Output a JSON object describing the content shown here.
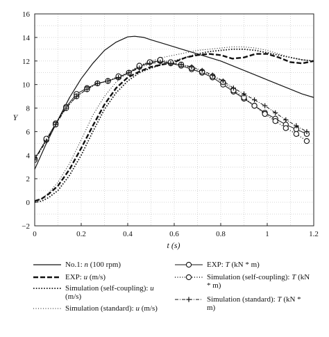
{
  "chart_data": {
    "type": "line",
    "xlabel": "t (s)",
    "ylabel": "Y",
    "xlim": [
      0,
      1.2
    ],
    "ylim": [
      -2,
      16
    ],
    "xticks": [
      "0",
      "0.2",
      "0.4",
      "0.6",
      "0.8",
      "1",
      "1.2"
    ],
    "yticks": [
      "−2",
      "0",
      "2",
      "4",
      "6",
      "8",
      "10",
      "12",
      "14",
      "16"
    ],
    "grid": true,
    "legend_position": "bottom",
    "series": [
      {
        "name": "No.1: n (100 rpm)",
        "line": "solid",
        "marker": "none",
        "width": 1.2,
        "x": [
          0,
          0.05,
          0.1,
          0.15,
          0.2,
          0.25,
          0.3,
          0.35,
          0.4,
          0.43,
          0.47,
          0.5,
          0.55,
          0.6,
          0.65,
          0.7,
          0.75,
          0.8,
          0.85,
          0.9,
          0.95,
          1.0,
          1.05,
          1.1,
          1.15,
          1.2
        ],
        "y": [
          2.8,
          5.0,
          7.0,
          8.9,
          10.5,
          11.8,
          12.9,
          13.6,
          14.05,
          14.1,
          14.0,
          13.8,
          13.5,
          13.2,
          12.9,
          12.6,
          12.3,
          12.0,
          11.6,
          11.2,
          10.8,
          10.4,
          10.0,
          9.6,
          9.2,
          8.9
        ]
      },
      {
        "name": "EXP: u (m/s)",
        "line": "dashed",
        "marker": "none",
        "width": 2.4,
        "x": [
          0,
          0.03,
          0.06,
          0.1,
          0.15,
          0.2,
          0.25,
          0.3,
          0.35,
          0.4,
          0.45,
          0.5,
          0.55,
          0.6,
          0.65,
          0.7,
          0.75,
          0.8,
          0.85,
          0.9,
          0.95,
          1.0,
          1.05,
          1.1,
          1.15,
          1.2
        ],
        "y": [
          0.1,
          0.3,
          0.7,
          1.4,
          2.8,
          4.6,
          6.5,
          8.3,
          9.7,
          10.6,
          11.1,
          11.5,
          11.7,
          11.9,
          12.3,
          12.5,
          12.6,
          12.5,
          12.2,
          12.3,
          12.6,
          12.6,
          12.3,
          11.9,
          11.8,
          12.0
        ]
      },
      {
        "name": "Simulation (self-coupling): u (m/s)",
        "line": "dotted",
        "marker": "none",
        "width": 1.8,
        "x": [
          0,
          0.03,
          0.06,
          0.1,
          0.15,
          0.2,
          0.25,
          0.3,
          0.35,
          0.4,
          0.45,
          0.5,
          0.55,
          0.6,
          0.65,
          0.7,
          0.75,
          0.8,
          0.85,
          0.9,
          0.95,
          1.0,
          1.05,
          1.1,
          1.15,
          1.2
        ],
        "y": [
          0.0,
          0.1,
          0.4,
          1.0,
          2.3,
          4.0,
          6.0,
          7.9,
          9.3,
          10.3,
          11.0,
          11.4,
          11.7,
          12.0,
          12.3,
          12.6,
          12.8,
          12.9,
          13.0,
          13.0,
          12.9,
          12.7,
          12.5,
          12.3,
          12.1,
          12.0
        ]
      },
      {
        "name": "Simulation (standard): u (m/s)",
        "line": "dotted",
        "marker": "none",
        "width": 1.0,
        "x": [
          0,
          0.03,
          0.06,
          0.1,
          0.15,
          0.2,
          0.25,
          0.3,
          0.35,
          0.4,
          0.45,
          0.5,
          0.55,
          0.6,
          0.65,
          0.7,
          0.75,
          0.8,
          0.85,
          0.9,
          0.95,
          1.0,
          1.05,
          1.1,
          1.15,
          1.2
        ],
        "y": [
          0.1,
          0.3,
          0.8,
          1.7,
          3.3,
          5.3,
          7.4,
          9.0,
          10.2,
          11.0,
          11.6,
          12.0,
          12.3,
          12.5,
          12.7,
          12.9,
          13.0,
          13.1,
          13.2,
          13.2,
          13.1,
          12.9,
          12.6,
          12.3,
          12.1,
          12.0
        ]
      },
      {
        "name": "EXP: T (kN * m)",
        "line": "solid",
        "marker": "circle",
        "width": 1.0,
        "x": [
          0,
          0.05,
          0.09,
          0.135,
          0.18,
          0.225,
          0.27,
          0.315,
          0.36,
          0.405,
          0.45,
          0.495,
          0.54,
          0.585,
          0.63,
          0.675,
          0.72,
          0.765,
          0.81,
          0.855,
          0.9,
          0.945,
          0.99,
          1.035,
          1.08,
          1.125,
          1.17
        ],
        "y": [
          3.7,
          5.3,
          6.7,
          8.1,
          9.2,
          9.7,
          10.1,
          10.3,
          10.6,
          11.0,
          11.5,
          11.9,
          12.0,
          11.8,
          11.6,
          11.3,
          11.0,
          10.6,
          10.0,
          9.4,
          8.8,
          8.2,
          7.6,
          7.1,
          6.6,
          6.2,
          5.8
        ]
      },
      {
        "name": "Simulation (self-coupling): T (kN * m)",
        "line": "dotted",
        "marker": "circle",
        "width": 1.4,
        "x": [
          0,
          0.05,
          0.09,
          0.135,
          0.18,
          0.225,
          0.27,
          0.315,
          0.36,
          0.405,
          0.45,
          0.495,
          0.54,
          0.585,
          0.63,
          0.675,
          0.72,
          0.765,
          0.81,
          0.855,
          0.9,
          0.945,
          0.99,
          1.035,
          1.08,
          1.125,
          1.17
        ],
        "y": [
          3.6,
          5.4,
          6.6,
          8.0,
          9.0,
          9.6,
          10.1,
          10.3,
          10.7,
          11.0,
          11.6,
          11.9,
          12.1,
          11.9,
          11.7,
          11.4,
          11.1,
          10.7,
          10.2,
          9.5,
          8.9,
          8.2,
          7.5,
          6.9,
          6.3,
          5.8,
          5.2
        ]
      },
      {
        "name": "Simulation (standard): T (kN * m)",
        "line": "dashdot",
        "marker": "plus",
        "width": 1.0,
        "x": [
          0,
          0.05,
          0.09,
          0.135,
          0.18,
          0.225,
          0.27,
          0.315,
          0.36,
          0.405,
          0.45,
          0.495,
          0.54,
          0.585,
          0.63,
          0.675,
          0.72,
          0.765,
          0.81,
          0.855,
          0.9,
          0.945,
          0.99,
          1.035,
          1.08,
          1.125,
          1.17
        ],
        "y": [
          3.6,
          5.2,
          6.6,
          8.0,
          9.0,
          9.6,
          10.1,
          10.3,
          10.6,
          11.0,
          11.4,
          11.8,
          11.9,
          11.8,
          11.7,
          11.5,
          11.2,
          10.8,
          10.3,
          9.7,
          9.2,
          8.7,
          8.2,
          7.6,
          7.0,
          6.5,
          6.0
        ]
      }
    ],
    "legend": [
      [
        "No.1: ",
        "n",
        " (100 rpm)"
      ],
      [
        "EXP: ",
        "u",
        " (m/s)"
      ],
      [
        "Simulation (self-coupling): ",
        "u",
        " (m/s)"
      ],
      [
        "Simulation (standard): ",
        "u",
        " (m/s)"
      ],
      [
        "EXP: ",
        "T",
        " (kN * m)"
      ],
      [
        "Simulation (self-coupling): ",
        "T",
        " (kN * m)"
      ],
      [
        "Simulation (standard): ",
        "T",
        " (kN * m)"
      ]
    ]
  }
}
